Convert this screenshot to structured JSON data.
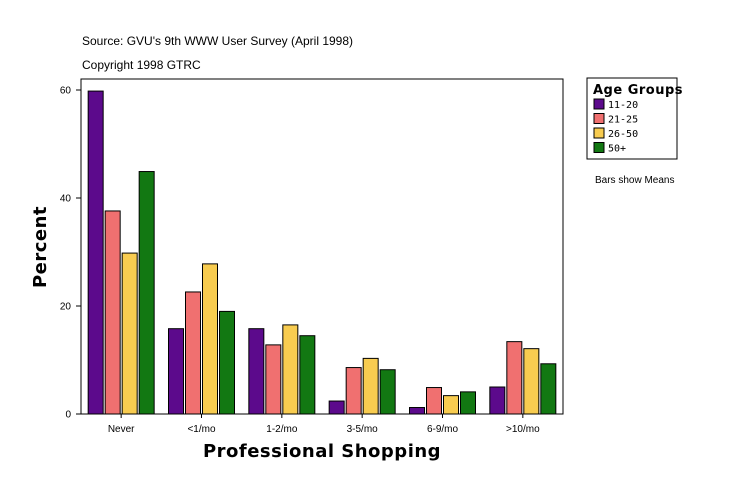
{
  "source_line": "Source: GVU's 9th WWW User Survey (April 1998)",
  "copyright_line": "Copyright 1998 GTRC",
  "note": "Bars show Means",
  "chart_data": {
    "type": "bar",
    "title": "",
    "xlabel": "Professional Shopping",
    "ylabel": "Percent",
    "ylim": [
      0,
      60
    ],
    "yticks": [
      "0",
      "20",
      "40",
      "60"
    ],
    "categories": [
      "Never",
      "<1/mo",
      "1-2/mo",
      "3-5/mo",
      "6-9/mo",
      ">10/mo"
    ],
    "legend_title": "Age Groups",
    "legend_position": "top-right outside",
    "grid": false,
    "series": [
      {
        "name": "11-20",
        "color": "#5c0a8c",
        "values": [
          59.8,
          15.8,
          15.8,
          2.4,
          1.2,
          5.0
        ]
      },
      {
        "name": "21-25",
        "color": "#f07070",
        "values": [
          37.6,
          22.6,
          12.8,
          8.6,
          4.9,
          13.4
        ]
      },
      {
        "name": "26-50",
        "color": "#f8cc50",
        "values": [
          29.8,
          27.8,
          16.5,
          10.3,
          3.4,
          12.1
        ]
      },
      {
        "name": "50+",
        "color": "#127812",
        "values": [
          44.9,
          19.0,
          14.5,
          8.2,
          4.1,
          9.3
        ]
      }
    ]
  }
}
